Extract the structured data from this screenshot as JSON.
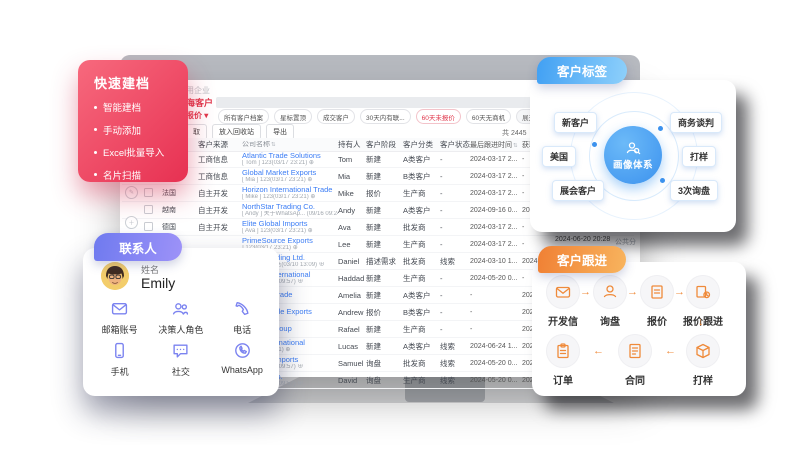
{
  "colors": {
    "accent_red": "#e0374b",
    "link_blue": "#3d7ef5",
    "blue": "#3c92ee",
    "purple": "#7b83f0",
    "orange": "#ef8a3a"
  },
  "crm": {
    "top_text": "用企业",
    "tab": "海客户",
    "filter_dropdown": "报价 ▾",
    "chips": [
      "所有客户档案",
      "星标置顶",
      "成交客户",
      "30天内有联...",
      "60天未报价",
      "60天无商机"
    ],
    "active_chip_index": 4,
    "expand_filter": "展开筛选 ∨",
    "actions": [
      "取",
      "放入回收站",
      "导出"
    ],
    "total": "共 2445",
    "fragments": {
      "datetime": "2024-06-20 20:28",
      "group_label": "公共分组"
    },
    "table": {
      "headers": [
        {
          "label": "客户来源",
          "sortable": false
        },
        {
          "label": "公司名称",
          "sortable": true
        },
        {
          "label": "持有人",
          "sortable": false
        },
        {
          "label": "客户阶段",
          "sortable": false
        },
        {
          "label": "客户分类",
          "sortable": false
        },
        {
          "label": "客户状态",
          "sortable": true
        },
        {
          "label": "最后跟进时间",
          "sortable": true
        },
        {
          "label": "获取时间",
          "sortable": false
        }
      ],
      "rows": [
        {
          "country": "",
          "source": "工商信息",
          "company": "Atlantic Trade Solutions",
          "sub": "[ Tom ] 123(03/17 23:21) ⊕",
          "owner": "Tom",
          "stage": "新建",
          "category": "A类客户",
          "status": "-",
          "follow": "2024-03-17 2...",
          "acquired": "-"
        },
        {
          "country": "",
          "source": "工商信息",
          "company": "Global Market Exports",
          "sub": "[ Mia ] 123(03/17 23:21) ⊕",
          "owner": "Mia",
          "stage": "新建",
          "category": "B类客户",
          "status": "-",
          "follow": "2024-03-17 2...",
          "acquired": "-"
        },
        {
          "country": "法国",
          "source": "自主开发",
          "company": "Horizon International Trade",
          "sub": "[ Mike ] 123(03/17 23:21) ⊕",
          "owner": "Mike",
          "stage": "报价",
          "category": "生产商",
          "status": "-",
          "follow": "2024-03-17 2...",
          "acquired": "-"
        },
        {
          "country": "越南",
          "source": "自主开发",
          "company": "NorthStar Trading Co.",
          "sub": "[ Andy ] 关于WhatsAp... (09/16 09:24) ⊕",
          "owner": "Andy",
          "stage": "新建",
          "category": "A类客户",
          "status": "-",
          "follow": "2024-09-16 0...",
          "acquired": "2024-0..."
        },
        {
          "country": "德国",
          "source": "自主开发",
          "company": "Elite Global Imports",
          "sub": "[ Ava ] 123(03/17 23:21) ⊕",
          "owner": "Ava",
          "stage": "新建",
          "category": "批发商",
          "status": "-",
          "follow": "2024-03-17 2...",
          "acquired": "-"
        },
        {
          "country": "",
          "source": "",
          "company": "PrimeSource Exports",
          "sub": "] 123(03/17 23:21) ⊕",
          "owner": "Lee",
          "stage": "新建",
          "category": "生产商",
          "status": "-",
          "follow": "2024-03-17 2...",
          "acquired": "-"
        },
        {
          "country": "",
          "source": "",
          "company": "…ntial Trading Ltd.",
          "sub": "…商品4号发送(03/10 13:09) ⊕",
          "owner": "Daniel",
          "stage": "描述需求",
          "category": "批发商",
          "status": "线索",
          "follow": "2024-03-10 1...",
          "acquired": "2024-..."
        },
        {
          "country": "",
          "source": "",
          "company": "…Edge International",
          "sub": "…测试(05/20 09:57) ⊕",
          "owner": "Haddad",
          "stage": "新建",
          "category": "生产商",
          "status": "-",
          "follow": "2024-05-20 0...",
          "acquired": "-"
        },
        {
          "country": "",
          "source": "",
          "company": "…Global Trade",
          "sub": "",
          "owner": "Amelia",
          "stage": "新建",
          "category": "A类客户",
          "status": "-",
          "follow": "-",
          "acquired": "2024-0..."
        },
        {
          "country": "",
          "source": "",
          "company": "…Worldwide Exports",
          "sub": "",
          "owner": "Andrew",
          "stage": "报价",
          "category": "B类客户",
          "status": "-",
          "follow": "-",
          "acquired": "2024-0..."
        },
        {
          "country": "",
          "source": "",
          "company": "…Trade Group",
          "sub": "",
          "owner": "Rafael",
          "stage": "新建",
          "category": "生产商",
          "status": "-",
          "follow": "-",
          "acquired": "2024-0..."
        },
        {
          "country": "",
          "source": "",
          "company": "…nds International",
          "sub": "…(06/24 10:51) ⊕",
          "owner": "Lucas",
          "stage": "新建",
          "category": "A类客户",
          "status": "线索",
          "follow": "2024-06-24 1...",
          "acquired": "2024-0..."
        },
        {
          "country": "",
          "source": "",
          "company": "…Global Imports",
          "sub": "…测试(05/20 09:57) ⊕",
          "owner": "Samuel",
          "stage": "询盘",
          "category": "批发商",
          "status": "线索",
          "follow": "2024-05-20 0...",
          "acquired": "2024-0..."
        },
        {
          "country": "",
          "source": "",
          "company": "…Trade Co.",
          "sub": "…测试(05/20 09:57) ⊕",
          "owner": "David",
          "stage": "询盘",
          "category": "生产商",
          "status": "线索",
          "follow": "2024-05-20 0...",
          "acquired": "2024-0..."
        }
      ]
    }
  },
  "cards": {
    "quick": {
      "title": "快速建档",
      "items": [
        "智能建档",
        "手动添加",
        "Excel批量导入",
        "名片扫描"
      ]
    },
    "contact": {
      "badge": "联系人",
      "name_label": "姓名",
      "name": "Emily",
      "fields": [
        {
          "icon": "email-icon",
          "label": "邮箱账号"
        },
        {
          "icon": "role-icon",
          "label": "决策人角色"
        },
        {
          "icon": "phone-icon",
          "label": "电话"
        },
        {
          "icon": "mobile-icon",
          "label": "手机"
        },
        {
          "icon": "social-icon",
          "label": "社交"
        },
        {
          "icon": "whatsapp-icon",
          "label": "WhatsApp"
        }
      ]
    },
    "tags": {
      "badge": "客户标签",
      "center": "画像体系",
      "left": [
        "新客户",
        "美国",
        "展会客户"
      ],
      "right": [
        "商务谈判",
        "打样",
        "3次询盘"
      ]
    },
    "follow": {
      "badge": "客户跟进",
      "row1": [
        {
          "icon": "mail-icon",
          "label": "开发信"
        },
        {
          "icon": "inquiry-icon",
          "label": "询盘"
        },
        {
          "icon": "quote-icon",
          "label": "报价"
        },
        {
          "icon": "quote-follow-icon",
          "label": "报价跟进"
        }
      ],
      "row2": [
        {
          "icon": "order-icon",
          "label": "订单"
        },
        {
          "icon": "contract-icon",
          "label": "合同"
        },
        {
          "icon": "sample-icon",
          "label": "打样"
        }
      ]
    }
  }
}
